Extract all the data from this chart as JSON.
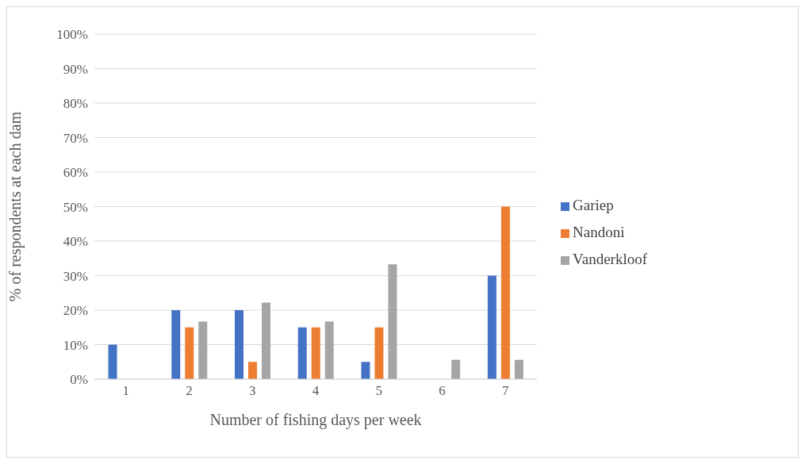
{
  "chart_data": {
    "type": "bar",
    "xlabel": "Number of fishing days per week",
    "ylabel": "% of respondents at each dam",
    "categories": [
      "1",
      "2",
      "3",
      "4",
      "5",
      "6",
      "7"
    ],
    "series": [
      {
        "name": "Gariep",
        "color": "#4472c4",
        "values": [
          10,
          20,
          20,
          15,
          5,
          0,
          30
        ]
      },
      {
        "name": "Nandoni",
        "color": "#ed7d31",
        "values": [
          0,
          15,
          5,
          15,
          15,
          0,
          50
        ]
      },
      {
        "name": "Vanderkloof",
        "color": "#a5a5a5",
        "values": [
          0,
          16.7,
          22.2,
          16.7,
          33.3,
          5.6,
          5.6
        ]
      }
    ],
    "ylim": [
      0,
      100
    ],
    "yticks": [
      {
        "value": 0,
        "label": "0%"
      },
      {
        "value": 10,
        "label": "10%"
      },
      {
        "value": 20,
        "label": "20%"
      },
      {
        "value": 30,
        "label": "30%"
      },
      {
        "value": 40,
        "label": "40%"
      },
      {
        "value": 50,
        "label": "50%"
      },
      {
        "value": 60,
        "label": "60%"
      },
      {
        "value": 70,
        "label": "70%"
      },
      {
        "value": 80,
        "label": "80%"
      },
      {
        "value": 90,
        "label": "90%"
      },
      {
        "value": 100,
        "label": "100%"
      }
    ],
    "grid": "y",
    "legend": "right"
  }
}
